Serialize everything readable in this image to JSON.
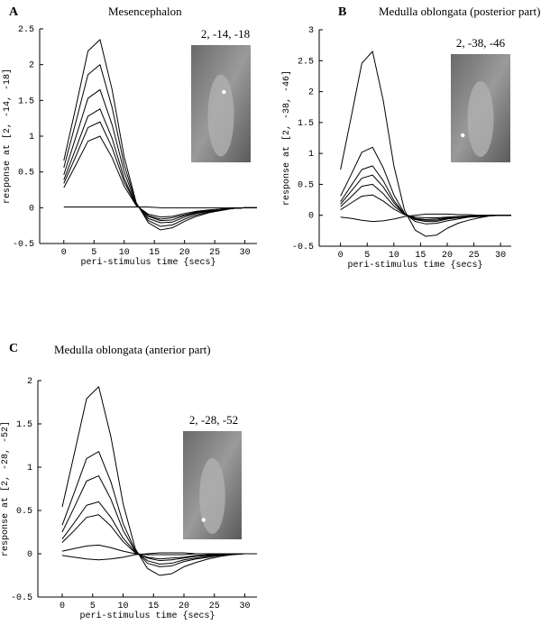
{
  "chart_data": [
    {
      "type": "line",
      "label": "A",
      "title": "Mesencephalon",
      "annotation": "2, -14, -18",
      "y_label": "response at [2, -14, -18]",
      "x_label": "peri-stimulus time {secs}",
      "xlim": [
        -4,
        32
      ],
      "xticks": [
        0,
        5,
        10,
        15,
        20,
        25,
        30
      ],
      "ylim": [
        -0.5,
        2.5
      ],
      "yticks": [
        -0.5,
        0,
        0.5,
        1,
        1.5,
        2,
        2.5
      ],
      "x": [
        0,
        2,
        4,
        6,
        8,
        10,
        12,
        14,
        16,
        18,
        20,
        22,
        24,
        26,
        28,
        30,
        32
      ],
      "series": [
        {
          "color": "#000000",
          "values": [
            0.66,
            1.41,
            2.19,
            2.35,
            1.65,
            0.71,
            0.07,
            -0.21,
            -0.31,
            -0.28,
            -0.19,
            -0.12,
            -0.07,
            -0.04,
            -0.01,
            0,
            0
          ]
        },
        {
          "color": "#000000",
          "values": [
            0.56,
            1.2,
            1.86,
            2.0,
            1.4,
            0.6,
            0.06,
            -0.18,
            -0.26,
            -0.24,
            -0.16,
            -0.1,
            -0.06,
            -0.03,
            -0.01,
            0,
            0
          ]
        },
        {
          "color": "#000000",
          "values": [
            0.46,
            0.99,
            1.53,
            1.65,
            1.16,
            0.5,
            0.05,
            -0.15,
            -0.21,
            -0.2,
            -0.13,
            -0.08,
            -0.05,
            -0.02,
            -0.01,
            0,
            0
          ]
        },
        {
          "color": "#000000",
          "values": [
            0.39,
            0.83,
            1.28,
            1.38,
            0.97,
            0.41,
            0.04,
            -0.12,
            -0.18,
            -0.17,
            -0.11,
            -0.07,
            -0.04,
            -0.02,
            -0.01,
            0,
            0
          ]
        },
        {
          "color": "#000000",
          "values": [
            0.34,
            0.72,
            1.12,
            1.2,
            0.84,
            0.36,
            0.04,
            -0.11,
            -0.16,
            -0.14,
            -0.1,
            -0.06,
            -0.04,
            -0.02,
            -0.01,
            0,
            0
          ]
        },
        {
          "color": "#000000",
          "values": [
            0.28,
            0.6,
            0.93,
            1.0,
            0.7,
            0.3,
            0.03,
            -0.09,
            -0.13,
            -0.12,
            -0.08,
            -0.05,
            -0.03,
            -0.02,
            -0.01,
            0,
            0
          ]
        },
        {
          "color": "#000000",
          "values": [
            0.01,
            0.01,
            0.01,
            0.01,
            0.01,
            0.01,
            0.01,
            0.01,
            0,
            0,
            0,
            0,
            0,
            0,
            0,
            0,
            0
          ]
        }
      ]
    },
    {
      "type": "line",
      "label": "B",
      "title": "Medulla oblongata (posterior part)",
      "annotation": "2, -38, -46",
      "y_label": "response at [2, -38, -46]",
      "x_label": "peri-stimulus time {secs}",
      "xlim": [
        -4,
        32
      ],
      "xticks": [
        0,
        5,
        10,
        15,
        20,
        25,
        30
      ],
      "ylim": [
        -0.5,
        3
      ],
      "yticks": [
        -0.5,
        0,
        0.5,
        1,
        1.5,
        2,
        2.5,
        3
      ],
      "x": [
        0,
        2,
        4,
        6,
        8,
        10,
        12,
        14,
        16,
        18,
        20,
        22,
        24,
        26,
        28,
        30,
        32
      ],
      "series": [
        {
          "color": "#000000",
          "values": [
            0.74,
            1.59,
            2.46,
            2.65,
            1.86,
            0.8,
            0.08,
            -0.24,
            -0.34,
            -0.32,
            -0.21,
            -0.13,
            -0.08,
            -0.04,
            -0.01,
            0,
            0
          ]
        },
        {
          "color": "#000000",
          "values": [
            0.31,
            0.66,
            1.02,
            1.1,
            0.77,
            0.33,
            0.03,
            -0.1,
            -0.14,
            -0.13,
            -0.09,
            -0.06,
            -0.03,
            -0.02,
            -0.01,
            0,
            0
          ]
        },
        {
          "color": "#000000",
          "values": [
            0.22,
            0.48,
            0.74,
            0.8,
            0.56,
            0.24,
            0.02,
            -0.07,
            -0.1,
            -0.1,
            -0.06,
            -0.04,
            -0.02,
            -0.01,
            0,
            0,
            0
          ]
        },
        {
          "color": "#000000",
          "values": [
            0.18,
            0.39,
            0.6,
            0.65,
            0.46,
            0.2,
            0.02,
            -0.06,
            -0.08,
            -0.08,
            -0.05,
            -0.03,
            -0.02,
            -0.01,
            0,
            0,
            0
          ]
        },
        {
          "color": "#000000",
          "values": [
            0.14,
            0.3,
            0.47,
            0.5,
            0.35,
            0.15,
            0.02,
            -0.05,
            -0.07,
            -0.06,
            -0.04,
            -0.03,
            -0.02,
            -0.01,
            0,
            0,
            0
          ]
        },
        {
          "color": "#000000",
          "values": [
            0.09,
            0.2,
            0.31,
            0.33,
            0.23,
            0.1,
            0.01,
            -0.03,
            -0.04,
            -0.04,
            -0.03,
            -0.02,
            -0.01,
            0,
            0,
            0,
            0
          ]
        },
        {
          "color": "#000000",
          "values": [
            -0.03,
            -0.05,
            -0.08,
            -0.1,
            -0.09,
            -0.06,
            -0.02,
            0,
            0.02,
            0.02,
            0.02,
            0.01,
            0.01,
            0,
            0,
            0,
            0
          ]
        }
      ]
    },
    {
      "type": "line",
      "label": "C",
      "title": "Medulla oblongata (anterior part)",
      "annotation": "2, -28, -52",
      "y_label": "response at [2, -28, -52]",
      "x_label": "peri-stimulus time {secs}",
      "xlim": [
        -4,
        32
      ],
      "xticks": [
        0,
        5,
        10,
        15,
        20,
        25,
        30
      ],
      "ylim": [
        -0.5,
        2
      ],
      "yticks": [
        -0.5,
        0,
        0.5,
        1,
        1.5,
        2
      ],
      "x": [
        0,
        2,
        4,
        6,
        8,
        10,
        12,
        14,
        16,
        18,
        20,
        22,
        24,
        26,
        28,
        30,
        32
      ],
      "series": [
        {
          "color": "#000000",
          "values": [
            0.54,
            1.16,
            1.79,
            1.93,
            1.35,
            0.58,
            0.06,
            -0.17,
            -0.25,
            -0.23,
            -0.15,
            -0.1,
            -0.06,
            -0.03,
            -0.01,
            0,
            0
          ]
        },
        {
          "color": "#000000",
          "values": [
            0.33,
            0.71,
            1.1,
            1.18,
            0.83,
            0.35,
            0.04,
            -0.11,
            -0.15,
            -0.14,
            -0.09,
            -0.06,
            -0.04,
            -0.02,
            -0.01,
            0,
            0
          ]
        },
        {
          "color": "#000000",
          "values": [
            0.25,
            0.54,
            0.84,
            0.9,
            0.63,
            0.27,
            0.03,
            -0.08,
            -0.12,
            -0.11,
            -0.07,
            -0.05,
            -0.03,
            -0.01,
            0,
            0,
            0
          ]
        },
        {
          "color": "#000000",
          "values": [
            0.17,
            0.36,
            0.56,
            0.6,
            0.42,
            0.18,
            0.02,
            -0.05,
            -0.08,
            -0.07,
            -0.05,
            -0.03,
            -0.02,
            -0.01,
            0,
            0,
            0
          ]
        },
        {
          "color": "#000000",
          "values": [
            0.13,
            0.27,
            0.42,
            0.45,
            0.32,
            0.14,
            0.01,
            -0.04,
            -0.06,
            -0.05,
            -0.04,
            -0.02,
            -0.01,
            -0.01,
            0,
            0,
            0
          ]
        },
        {
          "color": "#000000",
          "values": [
            0.03,
            0.06,
            0.09,
            0.1,
            0.07,
            0.03,
            0,
            -0.01,
            -0.01,
            -0.01,
            -0.01,
            0,
            0,
            0,
            0,
            0,
            0
          ]
        },
        {
          "color": "#000000",
          "values": [
            -0.02,
            -0.04,
            -0.06,
            -0.07,
            -0.06,
            -0.04,
            -0.01,
            0,
            0.01,
            0.01,
            0.01,
            0,
            0,
            0,
            0,
            0,
            0
          ]
        }
      ]
    }
  ]
}
